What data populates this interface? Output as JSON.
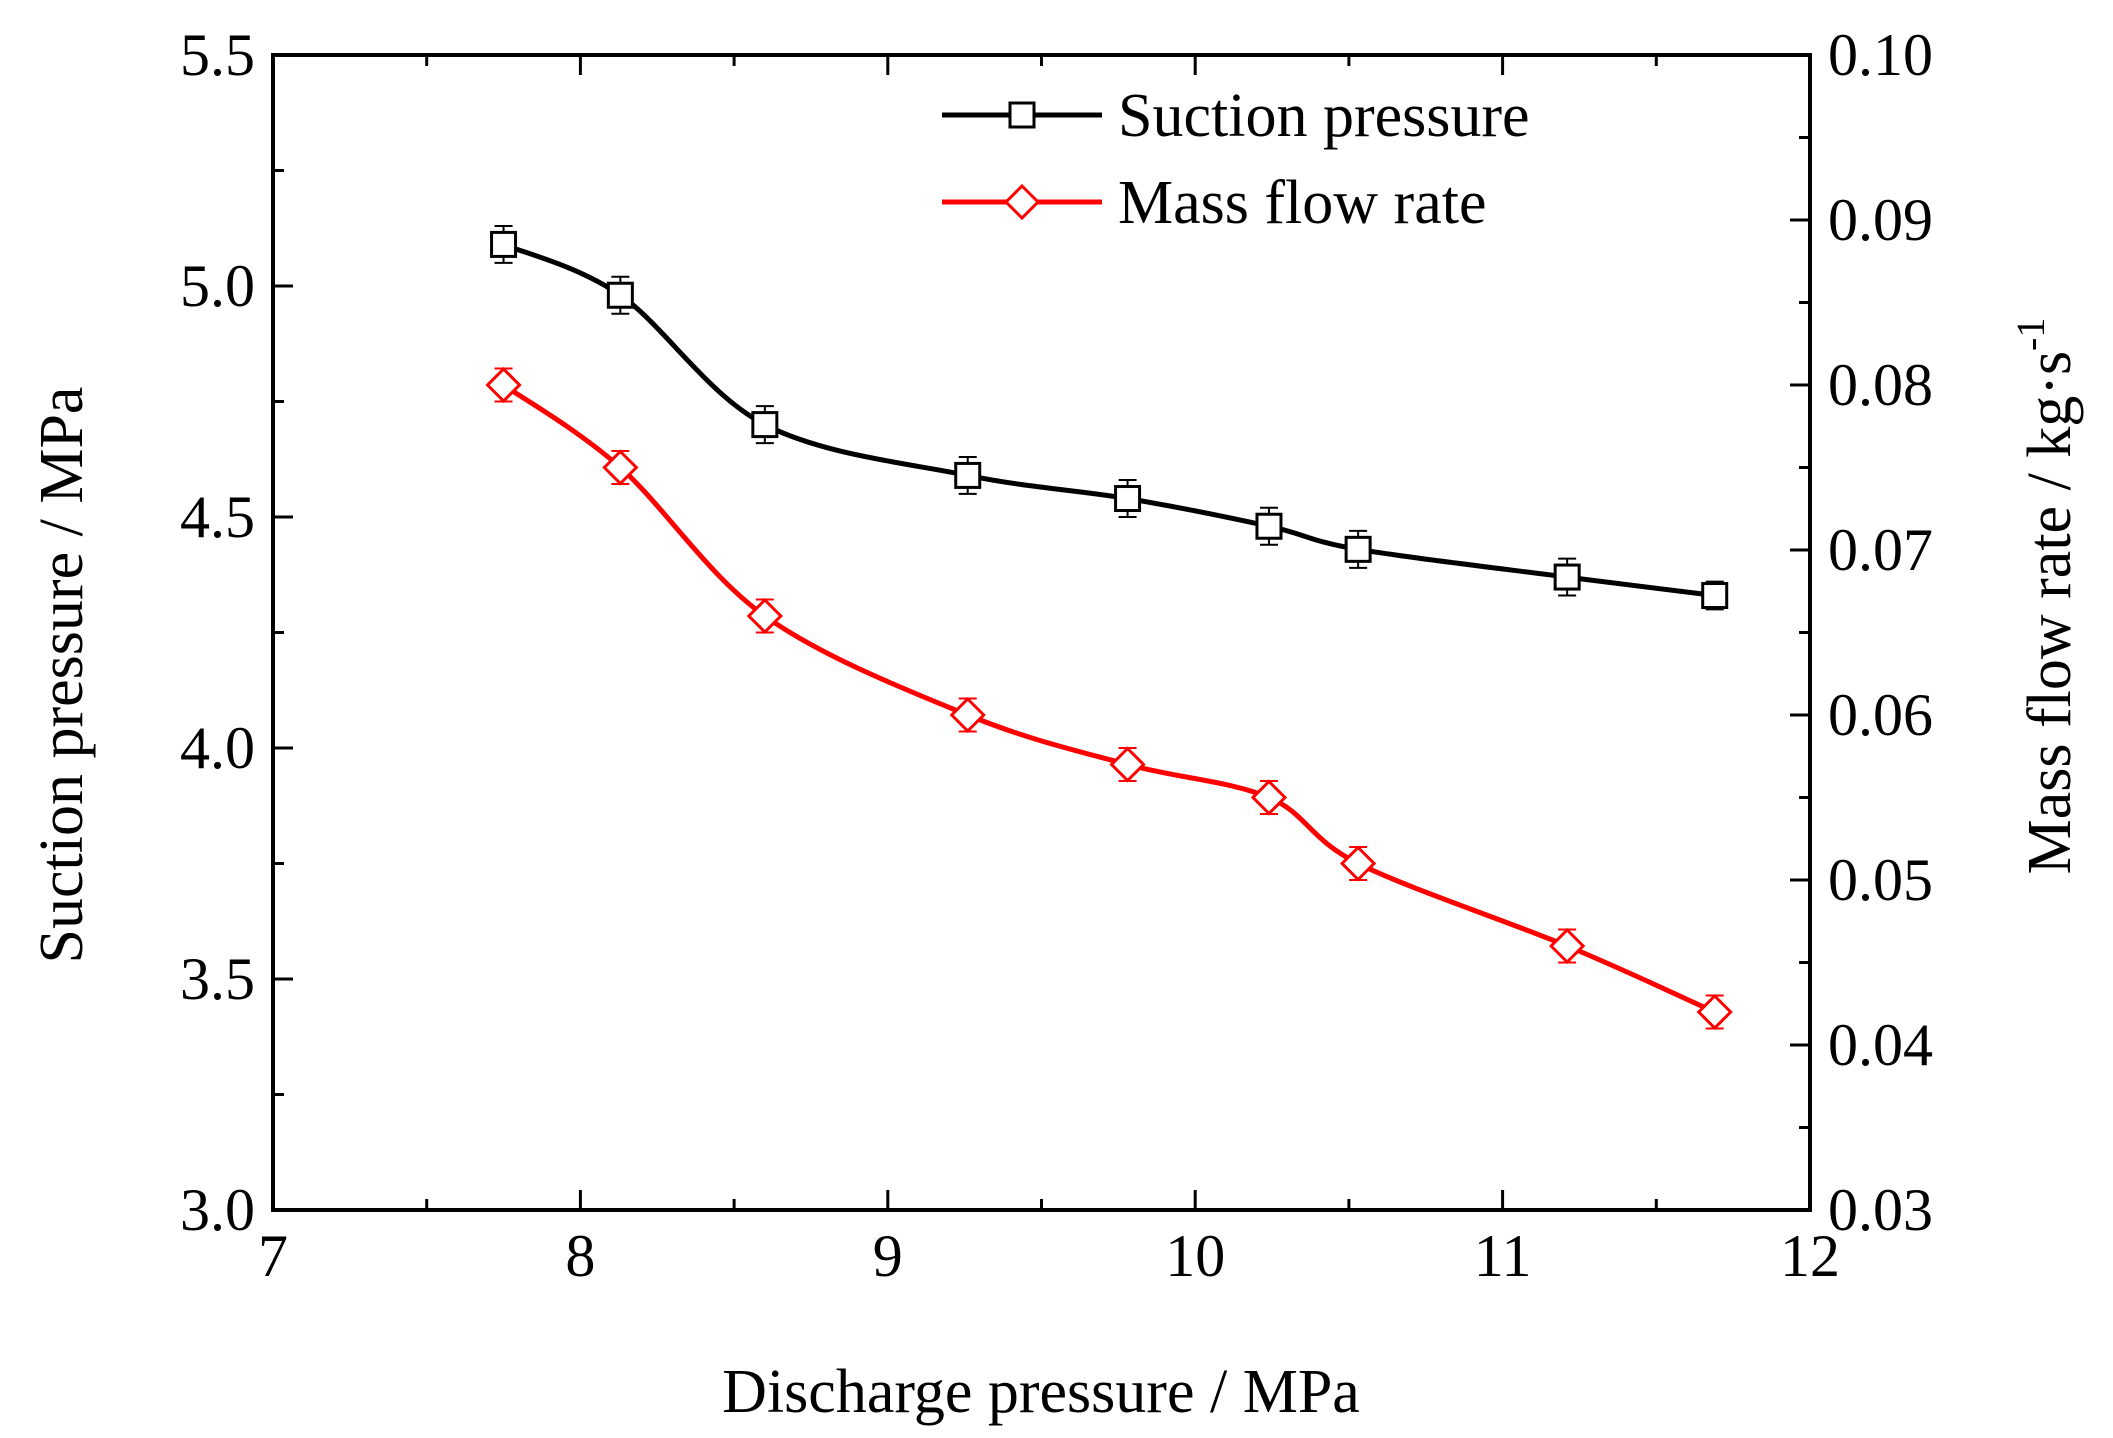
{
  "chart_data": {
    "type": "line",
    "x": [
      7.75,
      8.13,
      8.6,
      9.26,
      9.78,
      10.24,
      10.53,
      11.21,
      11.69
    ],
    "xlim": [
      7,
      12
    ],
    "xticks": [
      7,
      8,
      9,
      10,
      11,
      12
    ],
    "xtick_labels": [
      "7",
      "8",
      "9",
      "10",
      "11",
      "12"
    ],
    "xlabel": "Discharge pressure  / MPa",
    "ylabel_left": "Suction pressure   / MPa",
    "ylim_left": [
      3.0,
      5.5
    ],
    "yticks_left": [
      3.0,
      3.5,
      4.0,
      4.5,
      5.0,
      5.5
    ],
    "ytick_labels_left": [
      "3.0",
      "3.5",
      "4.0",
      "4.5",
      "5.0",
      "5.5"
    ],
    "ylabel_right": "Mass flow rate  / kg·s",
    "ylabel_right_sup": "-1",
    "ylim_right": [
      0.03,
      0.1
    ],
    "yticks_right": [
      0.03,
      0.04,
      0.05,
      0.06,
      0.07,
      0.08,
      0.09,
      0.1
    ],
    "ytick_labels_right": [
      "0.03",
      "0.04",
      "0.05",
      "0.06",
      "0.07",
      "0.08",
      "0.09",
      "0.10"
    ],
    "legend_position": "top-center",
    "series": [
      {
        "name": "Suction pressure",
        "axis": "left",
        "marker": "square",
        "color": "#000000",
        "values": [
          5.09,
          4.98,
          4.7,
          4.59,
          4.54,
          4.48,
          4.43,
          4.37,
          4.33
        ],
        "errors": [
          0.04,
          0.04,
          0.04,
          0.04,
          0.04,
          0.04,
          0.04,
          0.04,
          0.03
        ]
      },
      {
        "name": "Mass flow rate",
        "axis": "right",
        "marker": "diamond",
        "color": "#ff0000",
        "values": [
          0.08,
          0.075,
          0.066,
          0.06,
          0.057,
          0.055,
          0.051,
          0.046,
          0.042
        ],
        "errors": [
          0.001,
          0.001,
          0.001,
          0.001,
          0.001,
          0.001,
          0.001,
          0.001,
          0.001
        ]
      }
    ]
  }
}
